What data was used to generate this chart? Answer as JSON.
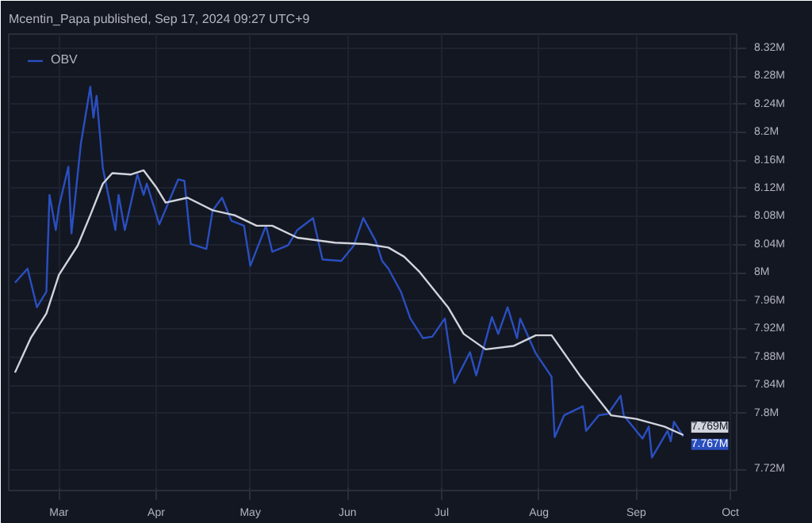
{
  "chart_data": {
    "type": "line",
    "title": "Mcentin_Papa published, Sep 17, 2024 09:27 UTC+9",
    "xlim": [
      "2024-02-14",
      "2024-10-03"
    ],
    "xticks": [
      {
        "value": "2024-03-01",
        "label": "Mar"
      },
      {
        "value": "2024-04-01",
        "label": "Apr"
      },
      {
        "value": "2024-05-01",
        "label": "May"
      },
      {
        "value": "2024-06-01",
        "label": "Jun"
      },
      {
        "value": "2024-07-01",
        "label": "Jul"
      },
      {
        "value": "2024-08-01",
        "label": "Aug"
      },
      {
        "value": "2024-09-01",
        "label": "Sep"
      },
      {
        "value": "2024-10-01",
        "label": "Oct"
      }
    ],
    "ylim": [
      7.69,
      8.34
    ],
    "yticks": [
      {
        "value": 8.32,
        "label": "8.32M"
      },
      {
        "value": 8.28,
        "label": "8.28M"
      },
      {
        "value": 8.24,
        "label": "8.24M"
      },
      {
        "value": 8.2,
        "label": "8.2M"
      },
      {
        "value": 8.16,
        "label": "8.16M"
      },
      {
        "value": 8.12,
        "label": "8.12M"
      },
      {
        "value": 8.08,
        "label": "8.08M"
      },
      {
        "value": 8.04,
        "label": "8.04M"
      },
      {
        "value": 8,
        "label": "8M"
      },
      {
        "value": 7.96,
        "label": "7.96M"
      },
      {
        "value": 7.92,
        "label": "7.92M"
      },
      {
        "value": 7.88,
        "label": "7.88M"
      },
      {
        "value": 7.84,
        "label": "7.84M"
      },
      {
        "value": 7.8,
        "label": "7.8M"
      },
      {
        "value": 7.72,
        "label": "7.72M"
      }
    ],
    "grid": true,
    "legend": "top left",
    "line_style": "solid",
    "series": [
      {
        "name": "OBV",
        "color": "#2a4fc0",
        "x": [
          "2024-02-16",
          "2024-02-20",
          "2024-02-23",
          "2024-02-26",
          "2024-02-27",
          "2024-02-29",
          "2024-03-01",
          "2024-03-04",
          "2024-03-05",
          "2024-03-08",
          "2024-03-11",
          "2024-03-12",
          "2024-03-13",
          "2024-03-15",
          "2024-03-19",
          "2024-03-20",
          "2024-03-22",
          "2024-03-26",
          "2024-03-28",
          "2024-03-29",
          "2024-04-02",
          "2024-04-08",
          "2024-04-10",
          "2024-04-12",
          "2024-04-17",
          "2024-04-19",
          "2024-04-22",
          "2024-04-25",
          "2024-04-29",
          "2024-05-01",
          "2024-05-06",
          "2024-05-08",
          "2024-05-13",
          "2024-05-16",
          "2024-05-21",
          "2024-05-24",
          "2024-05-30",
          "2024-06-03",
          "2024-06-06",
          "2024-06-10",
          "2024-06-12",
          "2024-06-14",
          "2024-06-18",
          "2024-06-21",
          "2024-06-25",
          "2024-06-28",
          "2024-07-02",
          "2024-07-05",
          "2024-07-10",
          "2024-07-12",
          "2024-07-17",
          "2024-07-19",
          "2024-07-22",
          "2024-07-25",
          "2024-07-26",
          "2024-07-31",
          "2024-08-05",
          "2024-08-06",
          "2024-08-09",
          "2024-08-15",
          "2024-08-16",
          "2024-08-20",
          "2024-08-23",
          "2024-08-27",
          "2024-08-28",
          "2024-09-03",
          "2024-09-05",
          "2024-09-06",
          "2024-09-11",
          "2024-09-12",
          "2024-09-13",
          "2024-09-16"
        ],
        "values": [
          7.986,
          8.006,
          7.951,
          7.973,
          8.111,
          8.061,
          8.094,
          8.151,
          8.056,
          8.184,
          8.265,
          8.221,
          8.252,
          8.149,
          8.061,
          8.111,
          8.061,
          8.14,
          8.111,
          8.127,
          8.069,
          8.133,
          8.131,
          8.041,
          8.034,
          8.089,
          8.107,
          8.074,
          8.067,
          8.01,
          8.067,
          8.03,
          8.039,
          8.061,
          8.078,
          8.019,
          8.017,
          8.039,
          8.078,
          8.045,
          8.017,
          8.006,
          7.973,
          7.935,
          7.907,
          7.909,
          7.935,
          7.843,
          7.887,
          7.854,
          7.937,
          7.913,
          7.951,
          7.907,
          7.935,
          7.885,
          7.852,
          7.766,
          7.797,
          7.81,
          7.775,
          7.797,
          7.799,
          7.825,
          7.797,
          7.764,
          7.781,
          7.737,
          7.775,
          7.76,
          7.788,
          7.767
        ]
      },
      {
        "color": "#d1d4dc",
        "x": [
          "2024-02-16",
          "2024-02-21",
          "2024-02-26",
          "2024-03-01",
          "2024-03-07",
          "2024-03-11",
          "2024-03-15",
          "2024-03-18",
          "2024-03-24",
          "2024-03-28",
          "2024-04-01",
          "2024-04-04",
          "2024-04-11",
          "2024-04-19",
          "2024-04-26",
          "2024-05-03",
          "2024-05-08",
          "2024-05-16",
          "2024-05-28",
          "2024-06-07",
          "2024-06-14",
          "2024-06-19",
          "2024-06-24",
          "2024-07-03",
          "2024-07-08",
          "2024-07-15",
          "2024-07-24",
          "2024-07-31",
          "2024-08-05",
          "2024-08-14",
          "2024-08-24",
          "2024-09-01",
          "2024-09-10",
          "2024-09-16"
        ],
        "values": [
          7.858,
          7.907,
          7.942,
          7.997,
          8.039,
          8.082,
          8.127,
          8.142,
          8.14,
          8.146,
          8.122,
          8.1,
          8.107,
          8.089,
          8.082,
          8.067,
          8.067,
          8.05,
          8.043,
          8.041,
          8.036,
          8.023,
          8.001,
          7.951,
          7.913,
          7.891,
          7.896,
          7.911,
          7.911,
          7.854,
          7.797,
          7.792,
          7.781,
          7.769
        ]
      }
    ],
    "annotations": [
      {
        "text": "7.767M",
        "x": "2024-09-16",
        "y": 7.767
      },
      {
        "text": "7.769M",
        "x": "2024-09-16",
        "y": 7.769
      }
    ]
  }
}
